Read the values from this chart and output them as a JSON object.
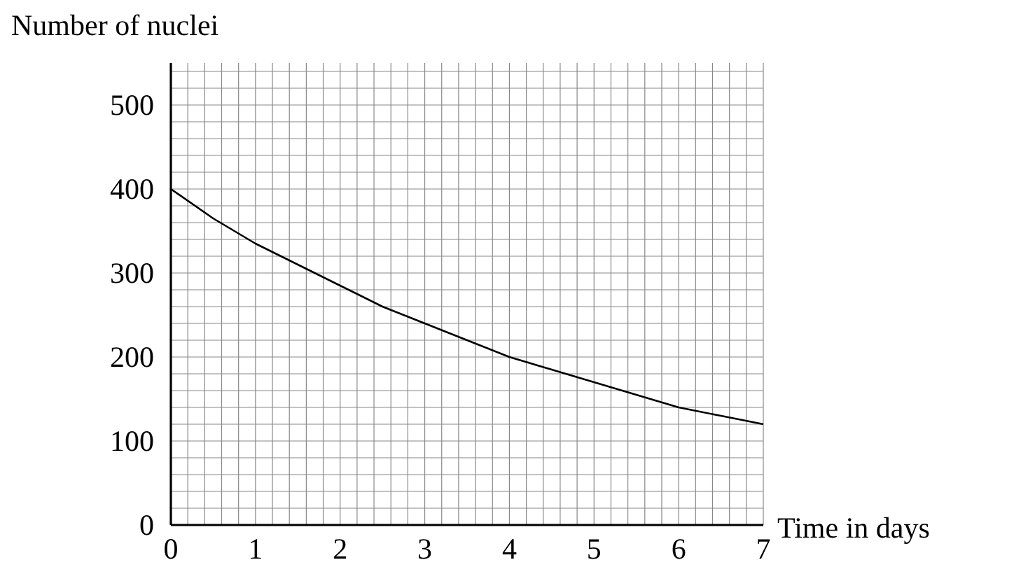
{
  "chart_data": {
    "type": "line",
    "xlabel": "Time in days",
    "ylabel": "Number of nuclei",
    "x": [
      0,
      0.5,
      1,
      1.5,
      2,
      2.5,
      3,
      3.5,
      4,
      4.5,
      5,
      5.5,
      6,
      6.5,
      7
    ],
    "series": [
      {
        "color": "#000000",
        "values": [
          400,
          365,
          335,
          310,
          285,
          260,
          240,
          220,
          200,
          185,
          170,
          155,
          140,
          130,
          120
        ]
      }
    ],
    "xlim": [
      0,
      7
    ],
    "xticks": [
      0,
      1,
      2,
      3,
      4,
      5,
      6,
      7
    ],
    "ylim": [
      0,
      550
    ],
    "yticks": [
      0,
      100,
      200,
      300,
      400,
      500
    ],
    "grid": true,
    "marker": "none",
    "line_style": "solid"
  }
}
